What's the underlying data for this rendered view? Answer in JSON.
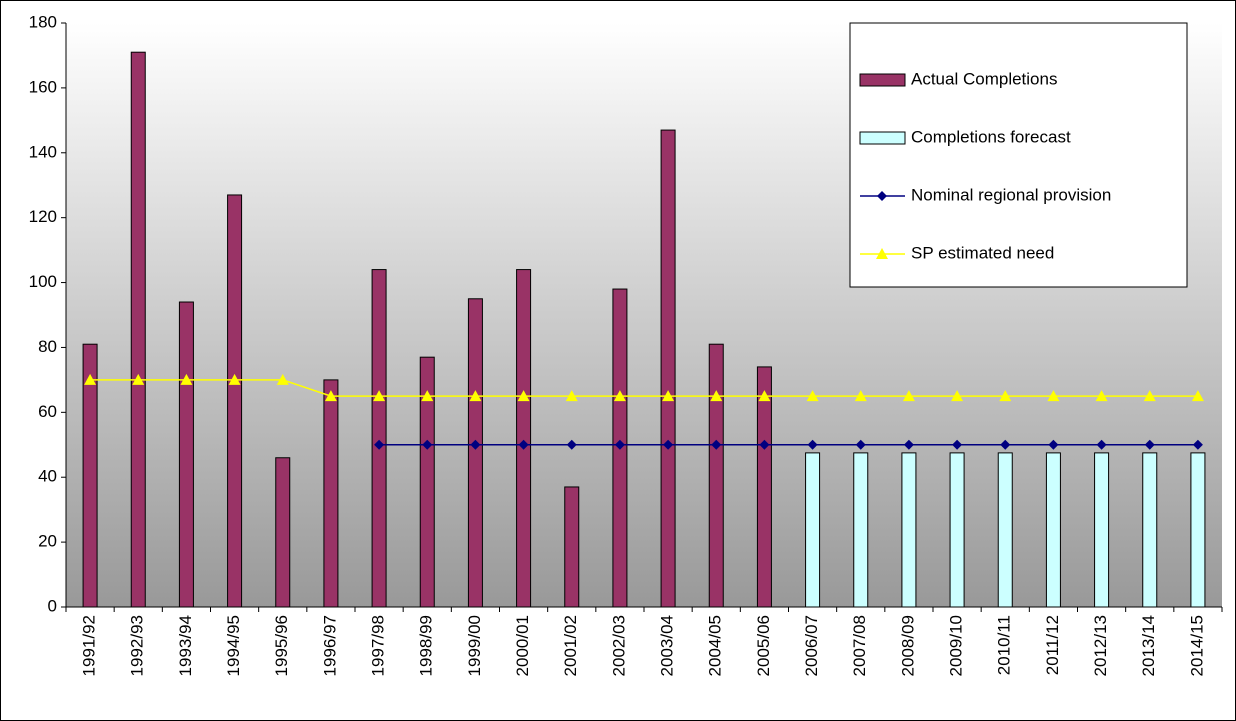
{
  "chart_data": {
    "type": "bar",
    "categories": [
      "1991/92",
      "1992/93",
      "1993/94",
      "1994/95",
      "1995/96",
      "1996/97",
      "1997/98",
      "1998/99",
      "1999/00",
      "2000/01",
      "2001/02",
      "2002/03",
      "2003/04",
      "2004/05",
      "2005/06",
      "2006/07",
      "2007/08",
      "2008/09",
      "2009/10",
      "2010/11",
      "2011/12",
      "2012/13",
      "2013/14",
      "2014/15"
    ],
    "series": [
      {
        "name": "Actual Completions",
        "type": "bar",
        "color": "#993366",
        "values": [
          81,
          171,
          94,
          127,
          46,
          70,
          104,
          77,
          95,
          104,
          37,
          98,
          147,
          81,
          74,
          null,
          null,
          null,
          null,
          null,
          null,
          null,
          null,
          null
        ]
      },
      {
        "name": "Completions forecast",
        "type": "bar",
        "color": "#ccffff",
        "values": [
          null,
          null,
          null,
          null,
          null,
          null,
          null,
          null,
          null,
          null,
          null,
          null,
          null,
          null,
          null,
          47.5,
          47.5,
          47.5,
          47.5,
          47.5,
          47.5,
          47.5,
          47.5,
          47.5
        ]
      },
      {
        "name": "Nominal regional provision",
        "type": "line",
        "marker": "diamond",
        "color": "#000080",
        "values": [
          null,
          null,
          null,
          null,
          null,
          null,
          50,
          50,
          50,
          50,
          50,
          50,
          50,
          50,
          50,
          50,
          50,
          50,
          50,
          50,
          50,
          50,
          50,
          50
        ]
      },
      {
        "name": "SP estimated need",
        "type": "line",
        "marker": "triangle",
        "color": "#ffff00",
        "values": [
          70,
          70,
          70,
          70,
          70,
          65,
          65,
          65,
          65,
          65,
          65,
          65,
          65,
          65,
          65,
          65,
          65,
          65,
          65,
          65,
          65,
          65,
          65,
          65
        ]
      }
    ],
    "ylim": [
      0,
      180
    ],
    "yticks": [
      0,
      20,
      40,
      60,
      80,
      100,
      120,
      140,
      160,
      180
    ],
    "legend": "top right"
  }
}
